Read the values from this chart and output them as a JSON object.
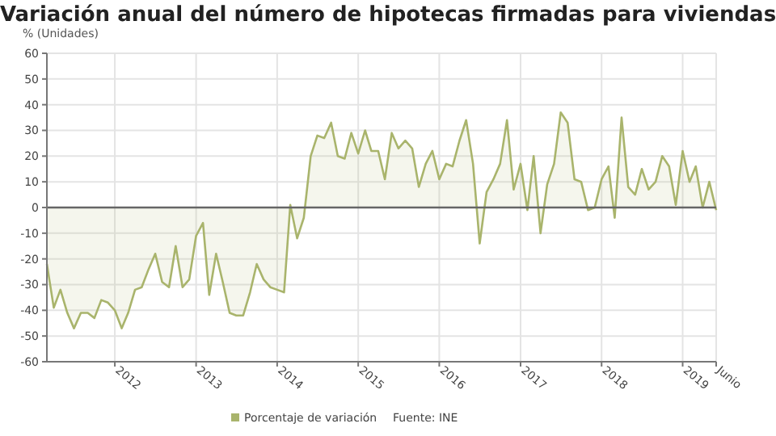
{
  "chart_data": {
    "type": "area",
    "title": "Variación anual del número de hipotecas firmadas para viviendas",
    "ylabel": "% (Unidades)",
    "x": [
      "2011-03",
      "2011-04",
      "2011-05",
      "2011-06",
      "2011-07",
      "2011-08",
      "2011-09",
      "2011-10",
      "2011-11",
      "2011-12",
      "2012-01",
      "2012-02",
      "2012-03",
      "2012-04",
      "2012-05",
      "2012-06",
      "2012-07",
      "2012-08",
      "2012-09",
      "2012-10",
      "2012-11",
      "2012-12",
      "2013-01",
      "2013-02",
      "2013-03",
      "2013-04",
      "2013-05",
      "2013-06",
      "2013-07",
      "2013-08",
      "2013-09",
      "2013-10",
      "2013-11",
      "2013-12",
      "2014-01",
      "2014-02",
      "2014-03",
      "2014-04",
      "2014-05",
      "2014-06",
      "2014-07",
      "2014-08",
      "2014-09",
      "2014-10",
      "2014-11",
      "2014-12",
      "2015-01",
      "2015-02",
      "2015-03",
      "2015-04",
      "2015-05",
      "2015-06",
      "2015-07",
      "2015-08",
      "2015-09",
      "2015-10",
      "2015-11",
      "2015-12",
      "2016-01",
      "2016-02",
      "2016-03",
      "2016-04",
      "2016-05",
      "2016-06",
      "2016-07",
      "2016-08",
      "2016-09",
      "2016-10",
      "2016-11",
      "2016-12",
      "2017-01",
      "2017-02",
      "2017-03",
      "2017-04",
      "2017-05",
      "2017-06",
      "2017-07",
      "2017-08",
      "2017-09",
      "2017-10",
      "2017-11",
      "2017-12",
      "2018-01",
      "2018-02",
      "2018-03",
      "2018-04",
      "2018-05",
      "2018-06",
      "2018-07",
      "2018-08",
      "2018-09",
      "2018-10",
      "2018-11",
      "2018-12",
      "2019-01",
      "2019-02",
      "2019-03",
      "2019-04",
      "2019-05",
      "2019-06"
    ],
    "series": [
      {
        "name": "Porcentaje de variación",
        "color": "#a9b46c",
        "values": [
          -22,
          -39,
          -32,
          -41,
          -47,
          -41,
          -41,
          -43,
          -36,
          -37,
          -40,
          -47,
          -41,
          -32,
          -31,
          -24,
          -18,
          -29,
          -31,
          -15,
          -31,
          -28,
          -11,
          -6,
          -34,
          -18,
          -29,
          -41,
          -42,
          -42,
          -33,
          -22,
          -28,
          -31,
          -32,
          -33,
          1,
          -12,
          -4,
          20,
          28,
          27,
          33,
          20,
          19,
          29,
          21,
          30,
          22,
          22,
          11,
          29,
          23,
          26,
          23,
          8,
          17,
          22,
          11,
          17,
          16,
          26,
          34,
          17,
          -14,
          6,
          11,
          17,
          34,
          7,
          17,
          -1,
          20,
          -10,
          9,
          17,
          37,
          33,
          11,
          10,
          -1,
          0,
          11,
          16,
          -4,
          35,
          8,
          5,
          15,
          7,
          10,
          20,
          16,
          1,
          22,
          10,
          16,
          0,
          10,
          -1
        ]
      }
    ],
    "xlim": [
      "2011-03",
      "2019-06"
    ],
    "xticks": [
      {
        "value": "2012",
        "label": "2012"
      },
      {
        "value": "2013",
        "label": "2013"
      },
      {
        "value": "2014",
        "label": "2014"
      },
      {
        "value": "2015",
        "label": "2015"
      },
      {
        "value": "2016",
        "label": "2016"
      },
      {
        "value": "2017",
        "label": "2017"
      },
      {
        "value": "2018",
        "label": "2018"
      },
      {
        "value": "2019",
        "label": "2019"
      },
      {
        "value": "2019-06",
        "label": "Junio"
      }
    ],
    "ylim": [
      -60,
      60
    ],
    "yticks": [
      -60,
      -50,
      -40,
      -30,
      -20,
      -10,
      0,
      10,
      20,
      30,
      40,
      50,
      60
    ],
    "grid": true,
    "legend": "bottom",
    "marker": "none",
    "annotations": [
      "Fuente: INE"
    ]
  }
}
